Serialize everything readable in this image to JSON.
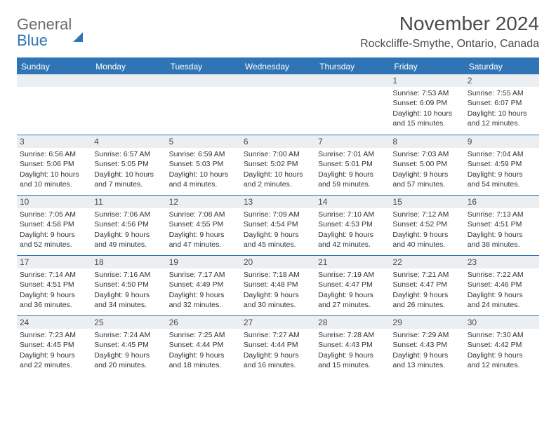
{
  "logo": {
    "line1": "General",
    "line2": "Blue"
  },
  "title": "November 2024",
  "location": "Rockcliffe-Smythe, Ontario, Canada",
  "colors": {
    "accent": "#2f75b5",
    "bar_bg": "#eceff1",
    "text": "#333333",
    "header_text": "#4a4a4a",
    "background": "#ffffff"
  },
  "weekdays": [
    "Sunday",
    "Monday",
    "Tuesday",
    "Wednesday",
    "Thursday",
    "Friday",
    "Saturday"
  ],
  "weeks": [
    [
      null,
      null,
      null,
      null,
      null,
      {
        "n": "1",
        "sr": "Sunrise: 7:53 AM",
        "ss": "Sunset: 6:09 PM",
        "dl": "Daylight: 10 hours and 15 minutes."
      },
      {
        "n": "2",
        "sr": "Sunrise: 7:55 AM",
        "ss": "Sunset: 6:07 PM",
        "dl": "Daylight: 10 hours and 12 minutes."
      }
    ],
    [
      {
        "n": "3",
        "sr": "Sunrise: 6:56 AM",
        "ss": "Sunset: 5:06 PM",
        "dl": "Daylight: 10 hours and 10 minutes."
      },
      {
        "n": "4",
        "sr": "Sunrise: 6:57 AM",
        "ss": "Sunset: 5:05 PM",
        "dl": "Daylight: 10 hours and 7 minutes."
      },
      {
        "n": "5",
        "sr": "Sunrise: 6:59 AM",
        "ss": "Sunset: 5:03 PM",
        "dl": "Daylight: 10 hours and 4 minutes."
      },
      {
        "n": "6",
        "sr": "Sunrise: 7:00 AM",
        "ss": "Sunset: 5:02 PM",
        "dl": "Daylight: 10 hours and 2 minutes."
      },
      {
        "n": "7",
        "sr": "Sunrise: 7:01 AM",
        "ss": "Sunset: 5:01 PM",
        "dl": "Daylight: 9 hours and 59 minutes."
      },
      {
        "n": "8",
        "sr": "Sunrise: 7:03 AM",
        "ss": "Sunset: 5:00 PM",
        "dl": "Daylight: 9 hours and 57 minutes."
      },
      {
        "n": "9",
        "sr": "Sunrise: 7:04 AM",
        "ss": "Sunset: 4:59 PM",
        "dl": "Daylight: 9 hours and 54 minutes."
      }
    ],
    [
      {
        "n": "10",
        "sr": "Sunrise: 7:05 AM",
        "ss": "Sunset: 4:58 PM",
        "dl": "Daylight: 9 hours and 52 minutes."
      },
      {
        "n": "11",
        "sr": "Sunrise: 7:06 AM",
        "ss": "Sunset: 4:56 PM",
        "dl": "Daylight: 9 hours and 49 minutes."
      },
      {
        "n": "12",
        "sr": "Sunrise: 7:08 AM",
        "ss": "Sunset: 4:55 PM",
        "dl": "Daylight: 9 hours and 47 minutes."
      },
      {
        "n": "13",
        "sr": "Sunrise: 7:09 AM",
        "ss": "Sunset: 4:54 PM",
        "dl": "Daylight: 9 hours and 45 minutes."
      },
      {
        "n": "14",
        "sr": "Sunrise: 7:10 AM",
        "ss": "Sunset: 4:53 PM",
        "dl": "Daylight: 9 hours and 42 minutes."
      },
      {
        "n": "15",
        "sr": "Sunrise: 7:12 AM",
        "ss": "Sunset: 4:52 PM",
        "dl": "Daylight: 9 hours and 40 minutes."
      },
      {
        "n": "16",
        "sr": "Sunrise: 7:13 AM",
        "ss": "Sunset: 4:51 PM",
        "dl": "Daylight: 9 hours and 38 minutes."
      }
    ],
    [
      {
        "n": "17",
        "sr": "Sunrise: 7:14 AM",
        "ss": "Sunset: 4:51 PM",
        "dl": "Daylight: 9 hours and 36 minutes."
      },
      {
        "n": "18",
        "sr": "Sunrise: 7:16 AM",
        "ss": "Sunset: 4:50 PM",
        "dl": "Daylight: 9 hours and 34 minutes."
      },
      {
        "n": "19",
        "sr": "Sunrise: 7:17 AM",
        "ss": "Sunset: 4:49 PM",
        "dl": "Daylight: 9 hours and 32 minutes."
      },
      {
        "n": "20",
        "sr": "Sunrise: 7:18 AM",
        "ss": "Sunset: 4:48 PM",
        "dl": "Daylight: 9 hours and 30 minutes."
      },
      {
        "n": "21",
        "sr": "Sunrise: 7:19 AM",
        "ss": "Sunset: 4:47 PM",
        "dl": "Daylight: 9 hours and 27 minutes."
      },
      {
        "n": "22",
        "sr": "Sunrise: 7:21 AM",
        "ss": "Sunset: 4:47 PM",
        "dl": "Daylight: 9 hours and 26 minutes."
      },
      {
        "n": "23",
        "sr": "Sunrise: 7:22 AM",
        "ss": "Sunset: 4:46 PM",
        "dl": "Daylight: 9 hours and 24 minutes."
      }
    ],
    [
      {
        "n": "24",
        "sr": "Sunrise: 7:23 AM",
        "ss": "Sunset: 4:45 PM",
        "dl": "Daylight: 9 hours and 22 minutes."
      },
      {
        "n": "25",
        "sr": "Sunrise: 7:24 AM",
        "ss": "Sunset: 4:45 PM",
        "dl": "Daylight: 9 hours and 20 minutes."
      },
      {
        "n": "26",
        "sr": "Sunrise: 7:25 AM",
        "ss": "Sunset: 4:44 PM",
        "dl": "Daylight: 9 hours and 18 minutes."
      },
      {
        "n": "27",
        "sr": "Sunrise: 7:27 AM",
        "ss": "Sunset: 4:44 PM",
        "dl": "Daylight: 9 hours and 16 minutes."
      },
      {
        "n": "28",
        "sr": "Sunrise: 7:28 AM",
        "ss": "Sunset: 4:43 PM",
        "dl": "Daylight: 9 hours and 15 minutes."
      },
      {
        "n": "29",
        "sr": "Sunrise: 7:29 AM",
        "ss": "Sunset: 4:43 PM",
        "dl": "Daylight: 9 hours and 13 minutes."
      },
      {
        "n": "30",
        "sr": "Sunrise: 7:30 AM",
        "ss": "Sunset: 4:42 PM",
        "dl": "Daylight: 9 hours and 12 minutes."
      }
    ]
  ]
}
